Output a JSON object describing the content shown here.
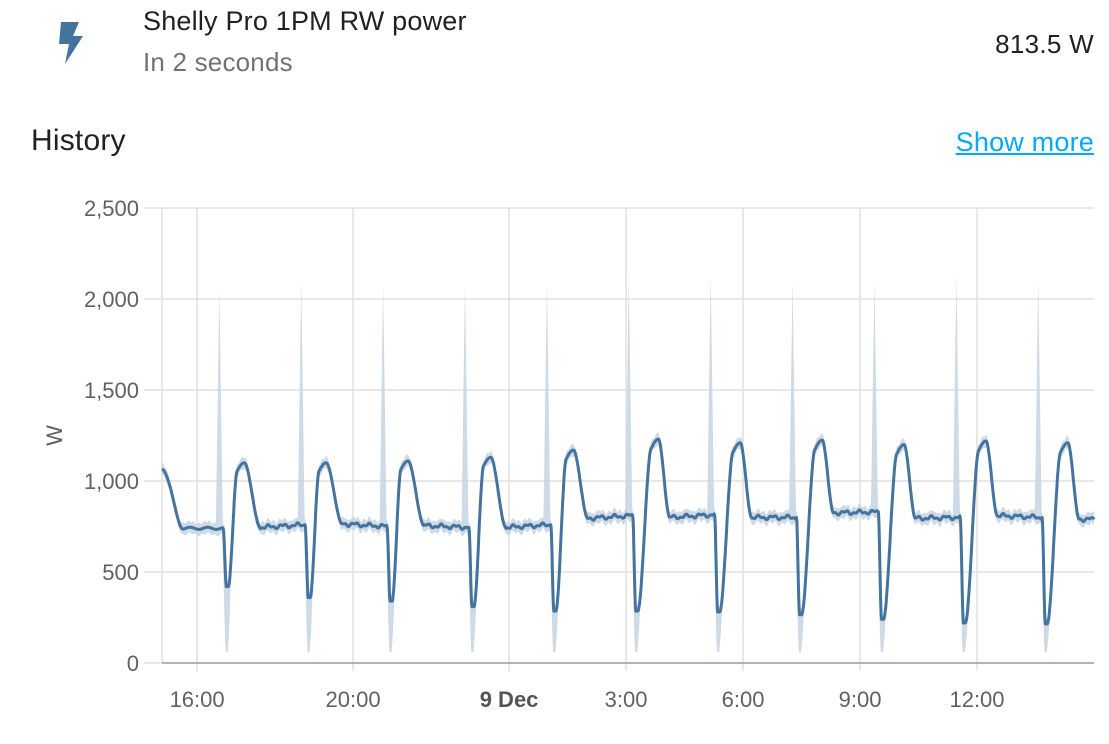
{
  "entity": {
    "icon": "flash-icon",
    "name": "Shelly Pro 1PM RW power",
    "last_changed": "In 2 seconds",
    "state": "813.5 W"
  },
  "history": {
    "title": "History",
    "show_more_label": "Show more"
  },
  "colors": {
    "line": "#44739e",
    "band": "#c5d3e2",
    "grid": "#e0e0e0",
    "axis_text": "#616161",
    "link": "#03a9f4"
  },
  "chart_data": {
    "type": "line",
    "ylabel": "W",
    "ylim": [
      0,
      2500
    ],
    "yticks": [
      "0",
      "500",
      "1,000",
      "1,500",
      "2,000",
      "2,500"
    ],
    "ytick_values": [
      0,
      500,
      1000,
      1500,
      2000,
      2500
    ],
    "xlim": [
      15.1,
      39.0
    ],
    "xticks": [
      {
        "label": "16:00",
        "hour": 16,
        "bold": false
      },
      {
        "label": "20:00",
        "hour": 20,
        "bold": false
      },
      {
        "label": "9 Dec",
        "hour": 24,
        "bold": true
      },
      {
        "label": "3:00",
        "hour": 27,
        "bold": false
      },
      {
        "label": "6:00",
        "hour": 30,
        "bold": false
      },
      {
        "label": "9:00",
        "hour": 33,
        "bold": false
      },
      {
        "label": "12:00",
        "hour": 36,
        "bold": false
      }
    ],
    "grid": true,
    "cycles": [
      {
        "t": 16.75,
        "dip": 420,
        "peak": 1100,
        "max": 2060,
        "min": 60,
        "base": 745,
        "pre": 740,
        "riseAfter": 0.28,
        "decayEnd": 0.62
      },
      {
        "t": 18.85,
        "dip": 360,
        "peak": 1100,
        "max": 2100,
        "min": 60,
        "base": 765,
        "pre": 760,
        "riseAfter": 0.28,
        "decayEnd": 0.62
      },
      {
        "t": 20.95,
        "dip": 340,
        "peak": 1110,
        "max": 2080,
        "min": 60,
        "base": 755,
        "pre": 750,
        "riseAfter": 0.28,
        "decayEnd": 0.62
      },
      {
        "t": 23.05,
        "dip": 310,
        "peak": 1130,
        "max": 2080,
        "min": 60,
        "base": 745,
        "pre": 745,
        "riseAfter": 0.3,
        "decayEnd": 0.62
      },
      {
        "t": 25.15,
        "dip": 285,
        "peak": 1170,
        "max": 2090,
        "min": 60,
        "base": 795,
        "pre": 760,
        "riseAfter": 0.32,
        "decayEnd": 0.62
      },
      {
        "t": 27.25,
        "dip": 285,
        "peak": 1230,
        "max": 2120,
        "min": 60,
        "base": 800,
        "pre": 810,
        "riseAfter": 0.4,
        "decayEnd": 0.62
      },
      {
        "t": 29.35,
        "dip": 280,
        "peak": 1210,
        "max": 2130,
        "min": 60,
        "base": 800,
        "pre": 815,
        "riseAfter": 0.4,
        "decayEnd": 0.62
      },
      {
        "t": 31.45,
        "dip": 265,
        "peak": 1225,
        "max": 2100,
        "min": 60,
        "base": 825,
        "pre": 800,
        "riseAfter": 0.4,
        "decayEnd": 0.62
      },
      {
        "t": 33.55,
        "dip": 240,
        "peak": 1200,
        "max": 2100,
        "min": 60,
        "base": 795,
        "pre": 830,
        "riseAfter": 0.4,
        "decayEnd": 0.62
      },
      {
        "t": 35.65,
        "dip": 220,
        "peak": 1220,
        "max": 2140,
        "min": 60,
        "base": 810,
        "pre": 800,
        "riseAfter": 0.4,
        "decayEnd": 0.62
      },
      {
        "t": 37.75,
        "dip": 215,
        "peak": 1210,
        "max": 2100,
        "min": 60,
        "base": 790,
        "pre": 800,
        "riseAfter": 0.4,
        "decayEnd": 0.62
      }
    ],
    "start_value": 1070,
    "end_value": 790
  }
}
